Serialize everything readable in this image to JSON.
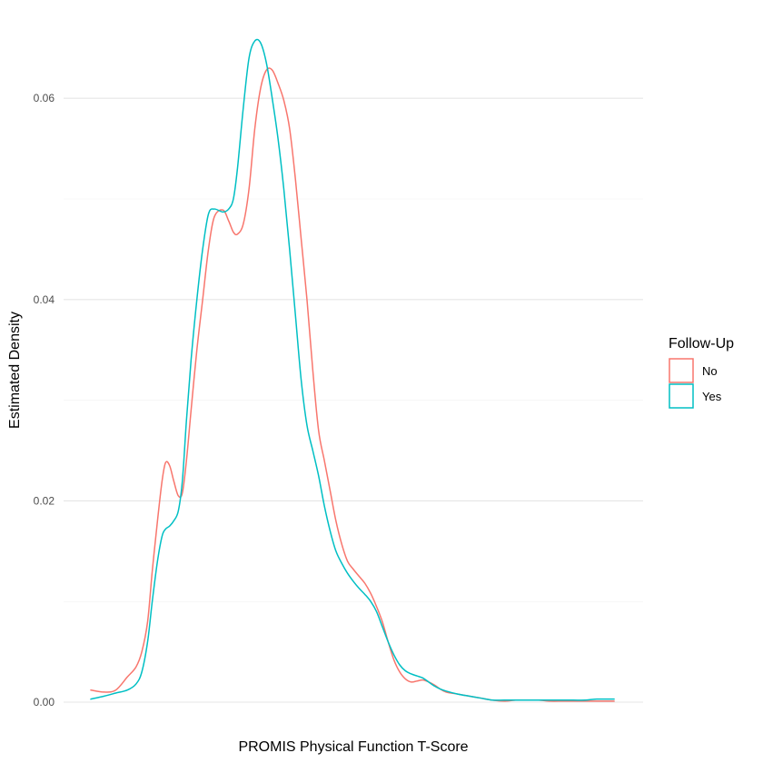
{
  "chart_data": {
    "type": "line",
    "subtype": "density",
    "title": "",
    "xlabel": "PROMIS Physical Function T-Score",
    "ylabel": "Estimated Density",
    "x_tick_labels_shown": false,
    "xlim": [
      0,
      100
    ],
    "ylim": [
      0,
      0.0672
    ],
    "y_ticks": [
      {
        "value": 0.0,
        "label": "0.00"
      },
      {
        "value": 0.02,
        "label": "0.02"
      },
      {
        "value": 0.04,
        "label": "0.04"
      },
      {
        "value": 0.06,
        "label": "0.06"
      }
    ],
    "y_minor_ticks": [
      0.01,
      0.03,
      0.05
    ],
    "grid": true,
    "legend": {
      "title": "Follow-Up",
      "placement": "right"
    },
    "series": [
      {
        "name": "No",
        "color": "#F8766D",
        "x": [
          4.7,
          7.0,
          9.0,
          11.0,
          12.5,
          13.5,
          14.5,
          15.3,
          16.2,
          17.0,
          17.6,
          18.3,
          19.0,
          19.8,
          20.5,
          21.2,
          22.0,
          23.0,
          24.0,
          25.0,
          26.0,
          27.5,
          28.5,
          29.3,
          30.0,
          31.0,
          32.0,
          33.0,
          34.0,
          35.0,
          36.0,
          37.0,
          38.0,
          39.0,
          40.0,
          41.0,
          42.0,
          43.0,
          44.0,
          45.0,
          46.0,
          47.0,
          48.0,
          49.0,
          50.0,
          51.0,
          52.0,
          53.0,
          54.0,
          55.0,
          56.0,
          57.0,
          58.0,
          59.0,
          60.0,
          61.0,
          62.0,
          63.0,
          64.0,
          65.0,
          66.0,
          68.0,
          70.0,
          72.0,
          74.0,
          76.0,
          78.0,
          80.0,
          82.0,
          84.0,
          86.0,
          88.0,
          90.0,
          92.0,
          95.0
        ],
        "y": [
          0.0012,
          0.001,
          0.0012,
          0.0025,
          0.0035,
          0.005,
          0.008,
          0.013,
          0.018,
          0.022,
          0.0238,
          0.0235,
          0.022,
          0.0205,
          0.0208,
          0.024,
          0.029,
          0.035,
          0.04,
          0.045,
          0.0482,
          0.0489,
          0.0478,
          0.0467,
          0.0465,
          0.0475,
          0.051,
          0.057,
          0.061,
          0.0628,
          0.0628,
          0.0615,
          0.0598,
          0.057,
          0.052,
          0.046,
          0.04,
          0.033,
          0.027,
          0.024,
          0.021,
          0.018,
          0.0157,
          0.014,
          0.0132,
          0.0125,
          0.0118,
          0.0108,
          0.0095,
          0.008,
          0.006,
          0.0042,
          0.003,
          0.0023,
          0.002,
          0.0021,
          0.0022,
          0.002,
          0.0017,
          0.0013,
          0.001,
          0.0008,
          0.0006,
          0.0004,
          0.0002,
          0.0001,
          0.0002,
          0.0002,
          0.0002,
          0.0001,
          0.0001,
          0.0001,
          0.0001,
          0.0001,
          0.0001
        ]
      },
      {
        "name": "Yes",
        "color": "#00BFC4",
        "x": [
          4.7,
          7.0,
          9.0,
          11.0,
          12.5,
          13.5,
          14.5,
          15.3,
          16.2,
          17.0,
          17.6,
          18.3,
          19.0,
          19.8,
          20.5,
          21.2,
          22.0,
          23.0,
          24.0,
          25.0,
          26.0,
          27.5,
          28.5,
          29.3,
          30.0,
          31.0,
          32.0,
          33.0,
          34.0,
          35.0,
          36.0,
          37.0,
          38.0,
          39.0,
          40.0,
          41.0,
          42.0,
          43.0,
          44.0,
          45.0,
          46.0,
          47.0,
          48.0,
          49.0,
          50.0,
          51.0,
          52.0,
          53.0,
          54.0,
          55.0,
          56.0,
          57.0,
          58.0,
          59.0,
          60.0,
          61.0,
          62.0,
          63.0,
          64.0,
          65.0,
          66.0,
          68.0,
          70.0,
          72.0,
          74.0,
          76.0,
          78.0,
          80.0,
          82.0,
          84.0,
          86.0,
          88.0,
          90.0,
          92.0,
          95.0
        ],
        "y": [
          0.0003,
          0.0006,
          0.0009,
          0.0012,
          0.0018,
          0.003,
          0.006,
          0.01,
          0.014,
          0.0165,
          0.0172,
          0.0175,
          0.018,
          0.019,
          0.022,
          0.028,
          0.034,
          0.04,
          0.045,
          0.0485,
          0.049,
          0.0487,
          0.049,
          0.05,
          0.053,
          0.059,
          0.064,
          0.0657,
          0.0655,
          0.0635,
          0.06,
          0.056,
          0.051,
          0.045,
          0.0385,
          0.032,
          0.0275,
          0.025,
          0.0225,
          0.0195,
          0.017,
          0.015,
          0.0138,
          0.0128,
          0.012,
          0.0113,
          0.0107,
          0.01,
          0.009,
          0.0075,
          0.006,
          0.0047,
          0.0037,
          0.0031,
          0.0028,
          0.0026,
          0.0024,
          0.002,
          0.0016,
          0.0013,
          0.0011,
          0.0008,
          0.0006,
          0.0004,
          0.0002,
          0.0002,
          0.0002,
          0.0002,
          0.0002,
          0.0002,
          0.0002,
          0.0002,
          0.0002,
          0.0003,
          0.0003
        ]
      }
    ]
  }
}
